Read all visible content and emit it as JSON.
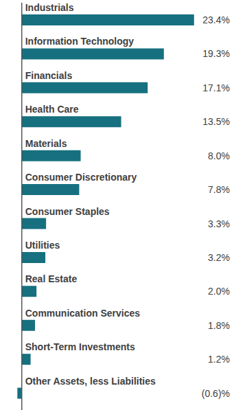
{
  "chart_data": {
    "type": "bar",
    "orientation": "horizontal",
    "categories": [
      "Industrials",
      "Information Technology",
      "Financials",
      "Health Care",
      "Materials",
      "Consumer Discretionary",
      "Consumer Staples",
      "Utilities",
      "Real Estate",
      "Communication Services",
      "Short-Term Investments",
      "Other Assets, less Liabilities"
    ],
    "values": [
      23.4,
      19.3,
      17.1,
      13.5,
      8.0,
      7.8,
      3.3,
      3.2,
      2.0,
      1.8,
      1.2,
      -0.6
    ],
    "value_labels": [
      "23.4%",
      "19.3%",
      "17.1%",
      "13.5%",
      "8.0%",
      "7.8%",
      "3.3%",
      "3.2%",
      "2.0%",
      "1.8%",
      "1.2%",
      "(0.6)%"
    ],
    "color": "#16707f",
    "xlim": [
      -1,
      25
    ],
    "data_labels": true,
    "tick_labels": false,
    "grid": false
  }
}
